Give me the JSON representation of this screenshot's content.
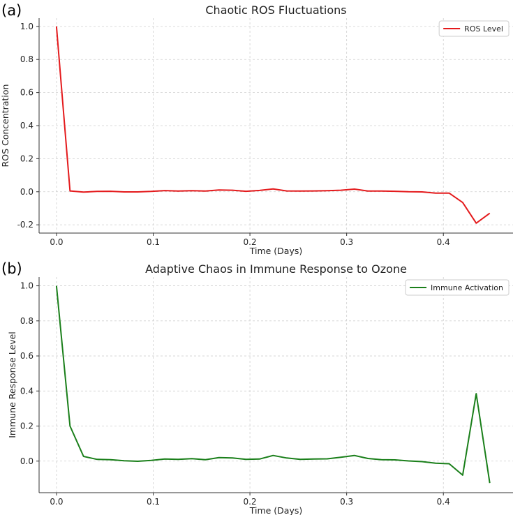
{
  "chart_data": [
    {
      "panel_label": "(a)",
      "type": "line",
      "title": "Chaotic ROS Fluctuations",
      "xlabel": "Time (Days)",
      "ylabel": "ROS Concentration",
      "xlim": [
        -0.018,
        0.472
      ],
      "ylim": [
        -0.25,
        1.05
      ],
      "xticks": [
        0.0,
        0.1,
        0.2,
        0.3,
        0.4
      ],
      "yticks": [
        -0.2,
        0.0,
        0.2,
        0.4,
        0.6,
        0.8,
        1.0
      ],
      "grid": true,
      "legend_position": "top-right",
      "series": [
        {
          "name": "ROS Level",
          "color": "#e41a1c",
          "x": [
            0.0,
            0.014,
            0.028,
            0.042,
            0.056,
            0.07,
            0.084,
            0.098,
            0.112,
            0.126,
            0.14,
            0.154,
            0.168,
            0.182,
            0.196,
            0.21,
            0.224,
            0.238,
            0.252,
            0.266,
            0.28,
            0.294,
            0.308,
            0.322,
            0.336,
            0.35,
            0.364,
            0.378,
            0.392,
            0.406,
            0.42,
            0.434,
            0.448
          ],
          "values": [
            1.0,
            0.005,
            -0.002,
            0.002,
            0.003,
            -0.001,
            -0.001,
            0.002,
            0.007,
            0.004,
            0.006,
            0.004,
            0.011,
            0.009,
            0.003,
            0.008,
            0.017,
            0.005,
            0.004,
            0.005,
            0.006,
            0.009,
            0.016,
            0.004,
            0.004,
            0.003,
            0.0,
            -0.001,
            -0.008,
            -0.008,
            -0.065,
            -0.19,
            -0.13
          ]
        }
      ]
    },
    {
      "panel_label": "(b)",
      "type": "line",
      "title": "Adaptive Chaos in Immune Response to Ozone",
      "xlabel": "Time (Days)",
      "ylabel": "Immune Response Level",
      "xlim": [
        -0.018,
        0.472
      ],
      "ylim": [
        -0.18,
        1.05
      ],
      "xticks": [
        0.0,
        0.1,
        0.2,
        0.3,
        0.4
      ],
      "yticks": [
        0.0,
        0.2,
        0.4,
        0.6,
        0.8,
        1.0
      ],
      "grid": true,
      "legend_position": "top-right",
      "series": [
        {
          "name": "Immune Activation",
          "color": "#1a7f1a",
          "x": [
            0.0,
            0.014,
            0.028,
            0.042,
            0.056,
            0.07,
            0.084,
            0.098,
            0.112,
            0.126,
            0.14,
            0.154,
            0.168,
            0.182,
            0.196,
            0.21,
            0.224,
            0.238,
            0.252,
            0.266,
            0.28,
            0.294,
            0.308,
            0.322,
            0.336,
            0.35,
            0.364,
            0.378,
            0.392,
            0.406,
            0.42,
            0.434,
            0.448
          ],
          "values": [
            1.0,
            0.2,
            0.027,
            0.01,
            0.008,
            0.002,
            -0.001,
            0.004,
            0.012,
            0.01,
            0.014,
            0.008,
            0.02,
            0.018,
            0.01,
            0.012,
            0.032,
            0.018,
            0.01,
            0.012,
            0.013,
            0.022,
            0.032,
            0.015,
            0.008,
            0.007,
            0.001,
            -0.003,
            -0.012,
            -0.015,
            -0.08,
            0.385,
            -0.125
          ]
        }
      ]
    }
  ]
}
